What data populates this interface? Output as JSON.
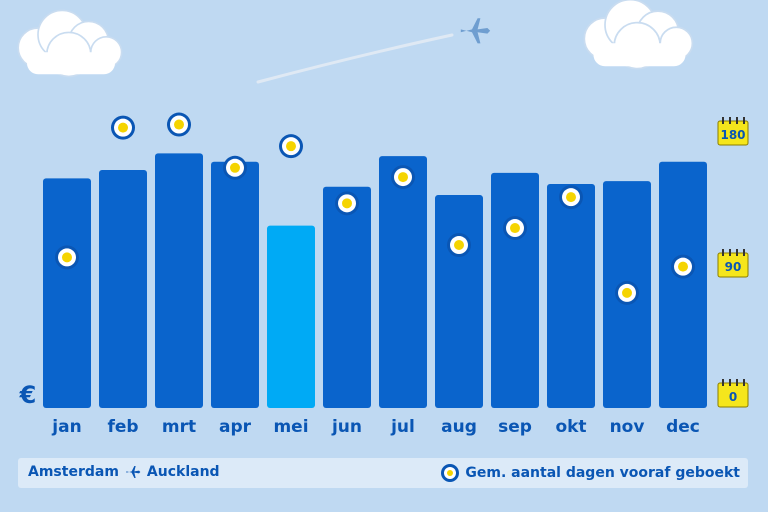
{
  "chart_data": {
    "type": "bar",
    "categories": [
      "jan",
      "feb",
      "mrt",
      "apr",
      "mei",
      "jun",
      "jul",
      "aug",
      "sep",
      "okt",
      "nov",
      "dec"
    ],
    "series": [
      {
        "values": [
          0.79,
          0.82,
          0.88,
          0.85,
          0.62,
          0.76,
          0.87,
          0.73,
          0.81,
          0.77,
          0.78,
          0.85
        ]
      },
      {
        "name": "Gem. aantal dagen vooraf geboekt",
        "values": [
          104,
          188,
          190,
          162,
          176,
          139,
          156,
          112,
          123,
          143,
          81,
          98
        ]
      }
    ],
    "highlight_index": 4,
    "y_currency_symbol": "€",
    "right_axis_ticks": [
      "180",
      "90",
      "0"
    ],
    "right_ylim": [
      0,
      180
    ]
  },
  "footer": {
    "origin": "Amsterdam",
    "destination": "Auckland",
    "legend_label": "Gem. aantal dagen vooraf geboekt"
  },
  "colors": {
    "background": "#bfd9f2",
    "bar": "#0a64cc",
    "bar_highlight": "#00aaf5",
    "label": "#0a56b4",
    "dot_fill": "#f5d400",
    "tick_box": "#f5e61c"
  },
  "icons": [
    "airplane-icon",
    "calendar-icon",
    "cloud-icon"
  ]
}
